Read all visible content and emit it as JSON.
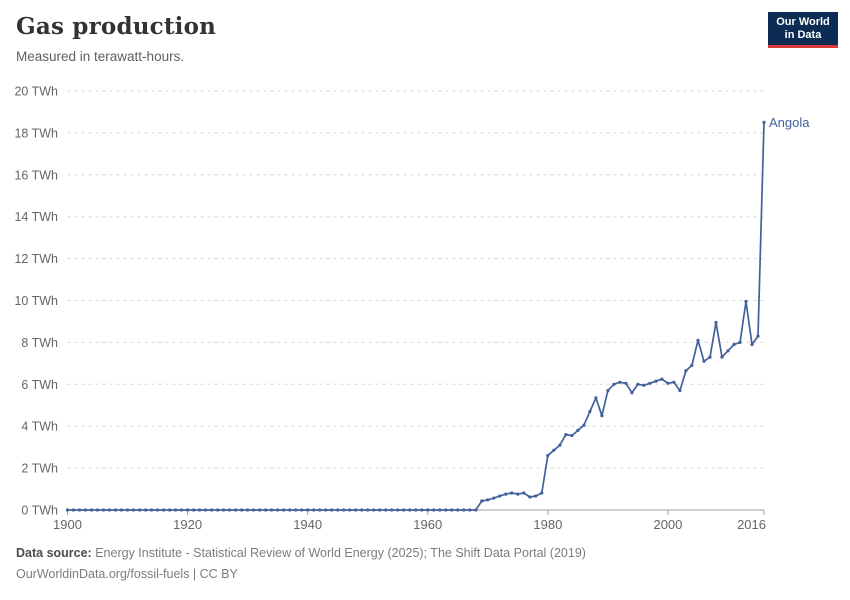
{
  "header": {
    "title": "Gas production",
    "subtitle": "Measured in terawatt-hours.",
    "logo": {
      "line1": "Our World",
      "line2": "in Data"
    }
  },
  "footer": {
    "source_label": "Data source:",
    "source_text": " Energy Institute - Statistical Review of World Energy (2025); The Shift Data Portal (2019)",
    "attribution": "OurWorldinData.org/fossil-fuels | CC BY"
  },
  "colors": {
    "series_line": "#42609a",
    "gridline": "#d5d5d5",
    "zero_axis": "#a0a0a0",
    "tick_mark": "#a0a0a0",
    "tick_label": "#666666",
    "logo_background": "#0d2c54",
    "logo_accent": "#d93a35"
  },
  "chart_data": {
    "type": "line",
    "title": "Gas production",
    "subtitle": "Measured in terawatt-hours.",
    "unit": "TWh",
    "xlim": [
      1900,
      2016
    ],
    "ylim": [
      0,
      20
    ],
    "x_ticks": [
      1900,
      1920,
      1940,
      1960,
      1980,
      2000,
      2016
    ],
    "y_ticks": [
      0,
      2,
      4,
      6,
      8,
      10,
      12,
      14,
      16,
      18,
      20
    ],
    "y_tick_suffix": " TWh",
    "grid": "dashed-horizontal",
    "legend_position": "end-of-line-label",
    "series": [
      {
        "name": "Angola",
        "end_label": "Angola",
        "start_year": 1900,
        "values": [
          0,
          0,
          0,
          0,
          0,
          0,
          0,
          0,
          0,
          0,
          0,
          0,
          0,
          0,
          0,
          0,
          0,
          0,
          0,
          0,
          0,
          0,
          0,
          0,
          0,
          0,
          0,
          0,
          0,
          0,
          0,
          0,
          0,
          0,
          0,
          0,
          0,
          0,
          0,
          0,
          0,
          0,
          0,
          0,
          0,
          0,
          0,
          0,
          0,
          0,
          0,
          0,
          0,
          0,
          0,
          0,
          0,
          0,
          0,
          0,
          0,
          0,
          0,
          0,
          0,
          0,
          0,
          0,
          0,
          0.43,
          0.48,
          0.57,
          0.67,
          0.76,
          0.81,
          0.76,
          0.81,
          0.62,
          0.67,
          0.81,
          2.6,
          2.85,
          3.1,
          3.6,
          3.55,
          3.8,
          4.05,
          4.7,
          5.35,
          4.5,
          5.7,
          6.0,
          6.1,
          6.05,
          5.6,
          6.0,
          5.95,
          6.05,
          6.15,
          6.25,
          6.05,
          6.1,
          5.7,
          6.65,
          6.9,
          8.1,
          7.1,
          7.3,
          8.95,
          7.3,
          7.6,
          7.9,
          8.0,
          9.95,
          7.9,
          8.3,
          18.5
        ]
      }
    ]
  }
}
